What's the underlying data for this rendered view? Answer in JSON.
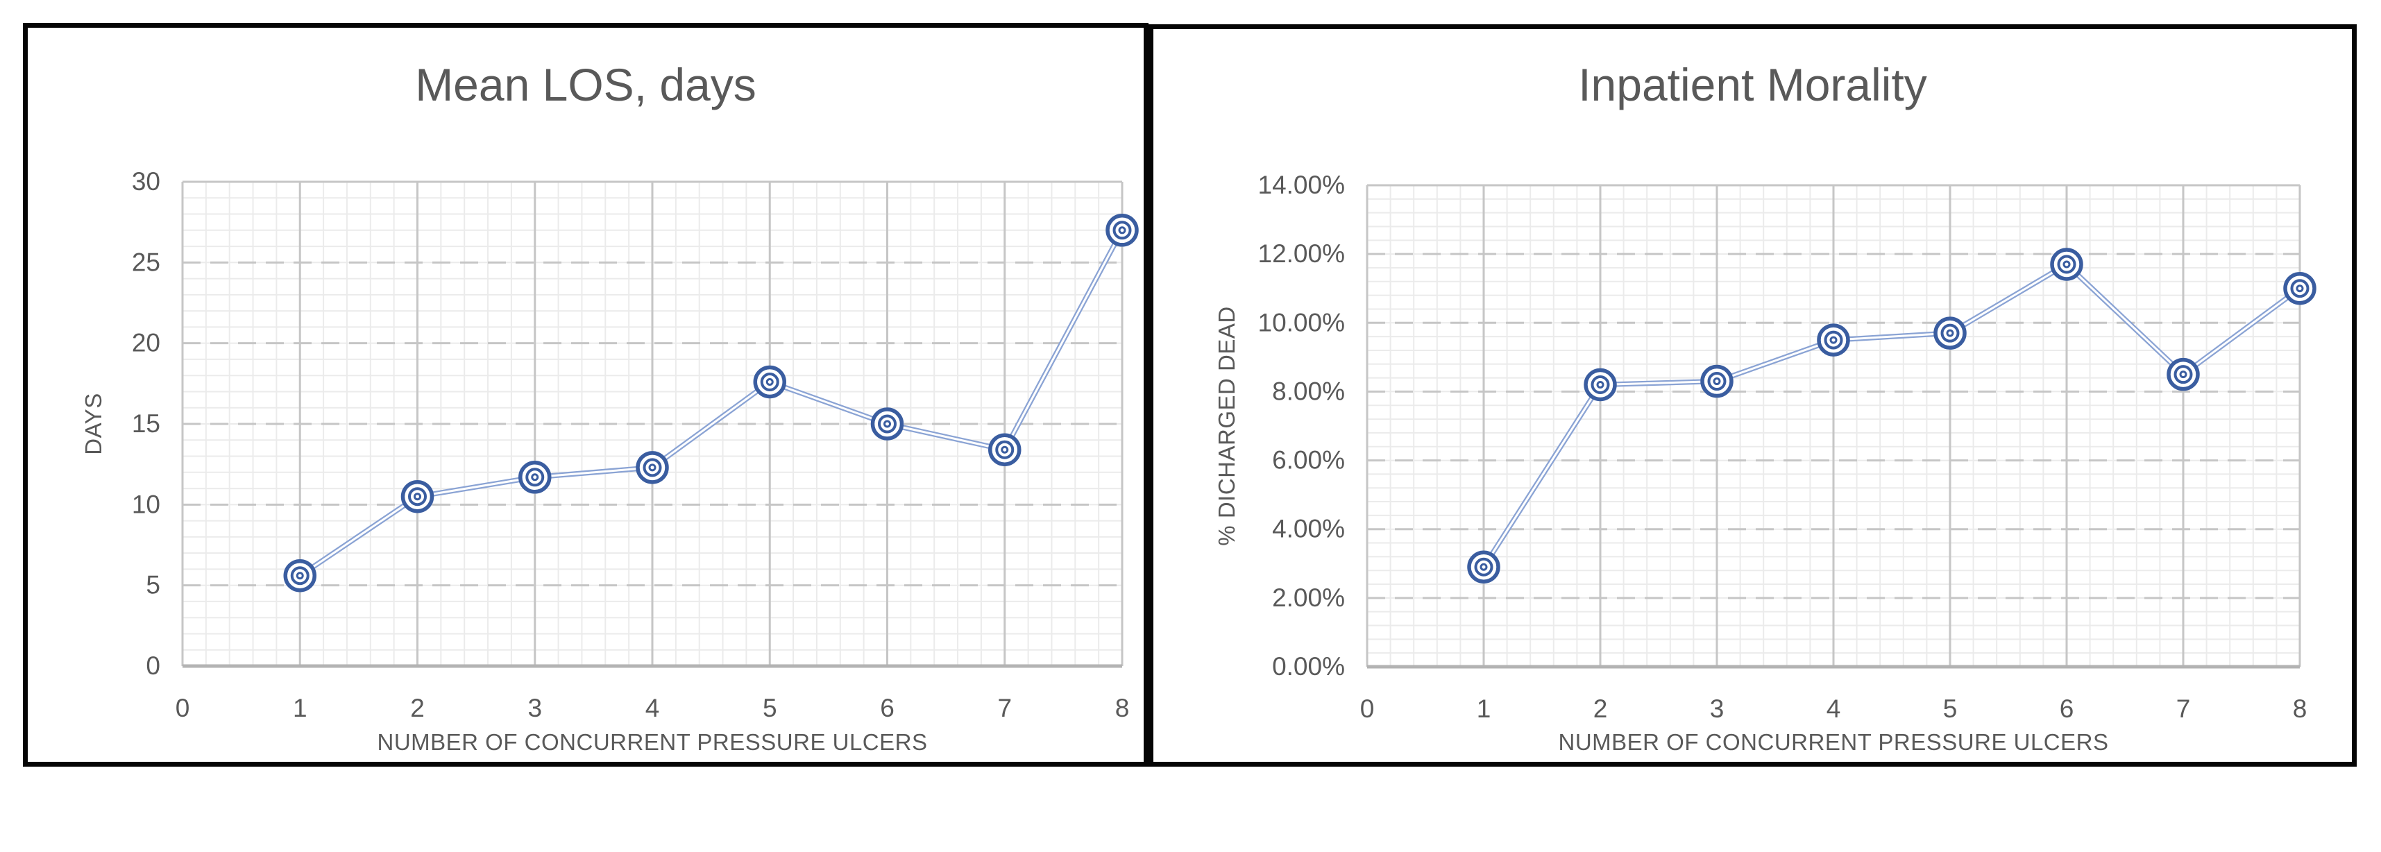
{
  "colors": {
    "line": "#8aa3d4",
    "line_core": "#ffffff",
    "marker": "#3a5da0",
    "title_text": "#595959",
    "tick_text": "#595959",
    "axis_title_text": "#595959",
    "major_grid": "#c6c6c6",
    "minor_grid": "#ebebeb",
    "axis_line": "#b3b3b3",
    "panel_border": "#050505",
    "background": "#ffffff"
  },
  "chart_data": [
    {
      "type": "line",
      "title": "Mean LOS, days",
      "xlabel": "NUMBER OF CONCURRENT PRESSURE ULCERS",
      "ylabel": "DAYS",
      "x": [
        1,
        2,
        3,
        4,
        5,
        6,
        7,
        8
      ],
      "values": [
        5.6,
        10.5,
        11.7,
        12.3,
        17.6,
        15.0,
        13.4,
        27.0
      ],
      "xlim": [
        0,
        8
      ],
      "ylim": [
        0,
        30
      ],
      "xticks": [
        0,
        1,
        2,
        3,
        4,
        5,
        6,
        7,
        8
      ],
      "xtick_labels": [
        "0",
        "1",
        "2",
        "3",
        "4",
        "5",
        "6",
        "7",
        "8"
      ],
      "yticks": [
        0,
        5,
        10,
        15,
        20,
        25,
        30
      ],
      "ytick_labels": [
        "0",
        "5",
        "10",
        "15",
        "20",
        "25",
        "30"
      ],
      "x_minor_step": 0.2,
      "y_minor_step": 1,
      "grid": true,
      "legend": "none",
      "marker": "concentric-circles"
    },
    {
      "type": "line",
      "title": "Inpatient Morality",
      "xlabel": "NUMBER OF CONCURRENT PRESSURE ULCERS",
      "ylabel": "% DICHARGED DEAD",
      "x": [
        1,
        2,
        3,
        4,
        5,
        6,
        7,
        8
      ],
      "values": [
        0.029,
        0.082,
        0.083,
        0.095,
        0.097,
        0.117,
        0.085,
        0.11
      ],
      "xlim": [
        0,
        8
      ],
      "ylim": [
        0,
        0.14
      ],
      "xticks": [
        0,
        1,
        2,
        3,
        4,
        5,
        6,
        7,
        8
      ],
      "xtick_labels": [
        "0",
        "1",
        "2",
        "3",
        "4",
        "5",
        "6",
        "7",
        "8"
      ],
      "yticks": [
        0,
        0.02,
        0.04,
        0.06,
        0.08,
        0.1,
        0.12,
        0.14
      ],
      "ytick_labels": [
        "0.00%",
        "2.00%",
        "4.00%",
        "6.00%",
        "8.00%",
        "10.00%",
        "12.00%",
        "14.00%"
      ],
      "x_minor_step": 0.2,
      "y_minor_step": 0.004,
      "grid": true,
      "legend": "none",
      "marker": "concentric-circles"
    }
  ]
}
